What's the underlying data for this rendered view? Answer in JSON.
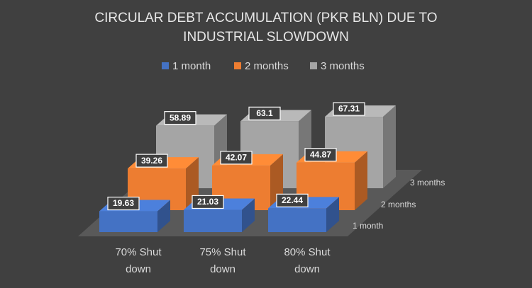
{
  "chart_data": {
    "type": "bar3d",
    "title": "CIRCULAR DEBT ACCUMULATION (PKR BLN) DUE TO INDUSTRIAL SLOWDOWN",
    "categories": [
      "70% Shut down",
      "75% Shut down",
      "80% Shut down"
    ],
    "series": [
      {
        "name": "1 month",
        "color": "#4472c4",
        "values": [
          19.63,
          21.03,
          22.44
        ]
      },
      {
        "name": "2 months",
        "color": "#ed7d31",
        "values": [
          39.26,
          42.07,
          44.87
        ]
      },
      {
        "name": "3 months",
        "color": "#a5a5a5",
        "values": [
          58.89,
          63.1,
          67.31
        ]
      }
    ],
    "legend": "top"
  }
}
